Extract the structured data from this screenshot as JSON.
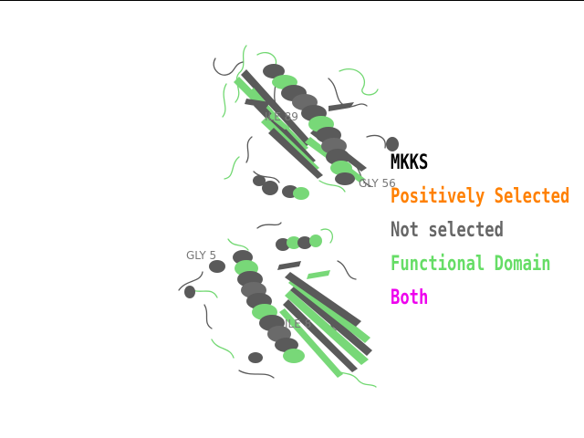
{
  "legend": {
    "title": "MKKS",
    "positively_selected": "Positively Selected",
    "not_selected": "Not selected",
    "functional_domain": "Functional Domain",
    "both": "Both"
  },
  "atom_labels": {
    "upper_ile": "ILE 89",
    "upper_gly": "GLY 56",
    "lower_gly": "GLY 5",
    "lower_ile": "ILE 8"
  },
  "colors": {
    "background": "#ffffff",
    "title": "#000000",
    "positively_selected": "#ff8000",
    "not_selected": "#666666",
    "functional_domain": "#66dd66",
    "both": "#ee00ee",
    "helix_gray": "#5a5a5a",
    "sheet_green": "#78d878",
    "label": "#777777"
  },
  "icons": [
    "protein-cartoon-upper",
    "protein-cartoon-lower"
  ]
}
